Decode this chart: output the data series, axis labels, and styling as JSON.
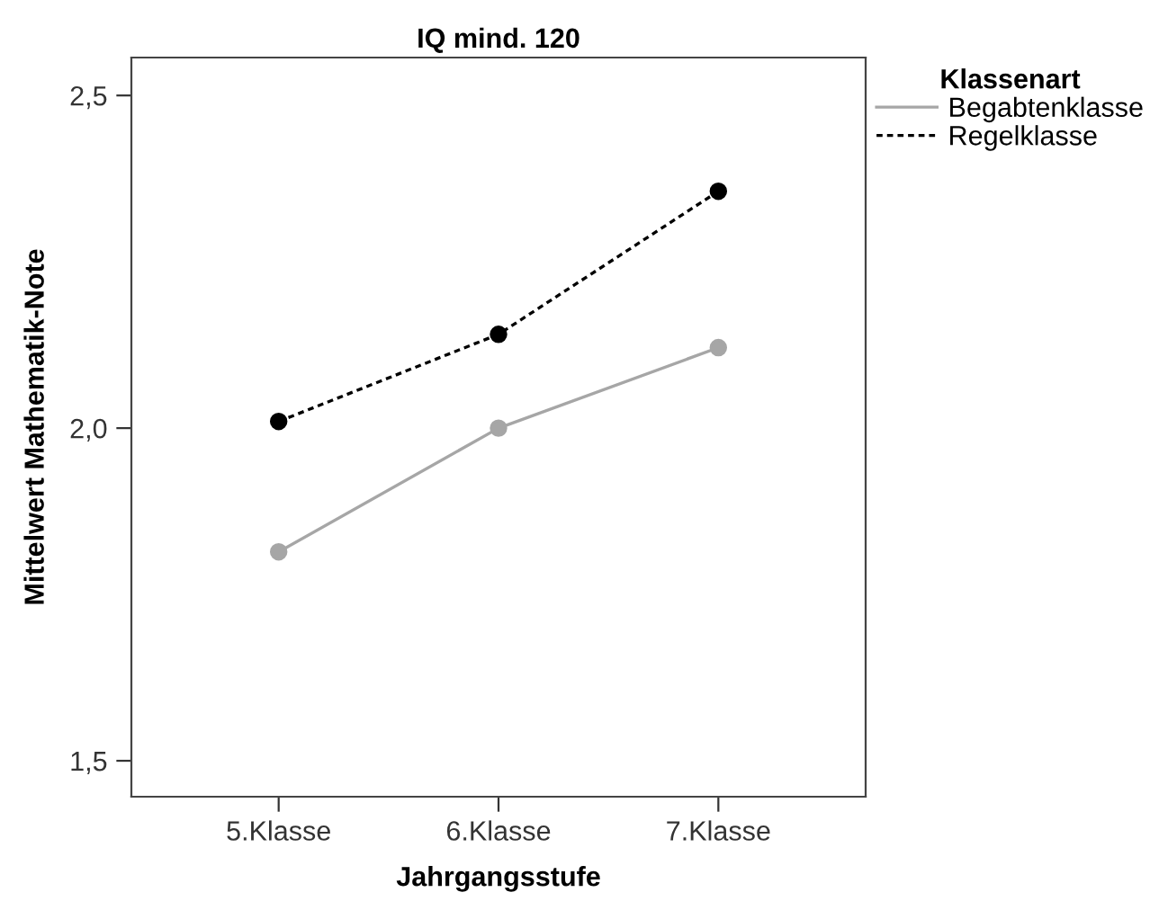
{
  "chart_data": {
    "type": "line",
    "title": "IQ mind. 120",
    "xlabel": "Jahrgangsstufe",
    "ylabel": "Mittelwert Mathematik-Note",
    "legend_title": "Klassenart",
    "categories": [
      "5.Klasse",
      "6.Klasse",
      "7.Klasse"
    ],
    "series": [
      {
        "name": "Begabtenklasse",
        "color": "#a6a6a6",
        "line_style": "solid",
        "values": [
          1.814,
          2.0,
          2.121
        ]
      },
      {
        "name": "Regelklasse",
        "color": "#000000",
        "line_style": "dashed",
        "values": [
          2.01,
          2.141,
          2.356
        ]
      }
    ],
    "ylim": [
      1.446,
      2.557
    ],
    "yticks": [
      {
        "value": 1.5,
        "label": "1,5"
      },
      {
        "value": 2.0,
        "label": "2,0"
      },
      {
        "value": 2.5,
        "label": "2,5"
      }
    ],
    "marker": "circle",
    "grid": false,
    "legend": "top right"
  }
}
